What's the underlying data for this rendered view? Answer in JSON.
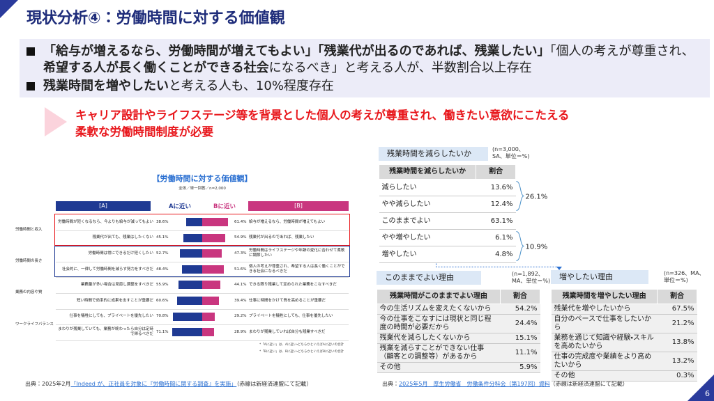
{
  "title": "現状分析④：労働時間に対する価値観",
  "bullets": [
    [
      {
        "text": "「給与が増えるなら、労働時間が増えてもよい」「残業代が出るのであれば、残業したい」",
        "bold": true
      },
      {
        "text": "「個人の考えが尊重され、",
        "bold": false
      },
      {
        "text": "希望する人が長く働くことができる社会",
        "bold": true
      },
      {
        "text": "になるべき」と考える人が、半数割合以上存在",
        "bold": false
      }
    ],
    [
      {
        "text": "残業時間を増やしたい",
        "bold": true
      },
      {
        "text": "と考える人も、10%程度存在",
        "bold": false
      }
    ]
  ],
  "callout": [
    "キャリア設計やライフステージ等を背景とした個人の考えが尊重され、働きたい意欲にこたえる",
    "柔軟な労働時間制度が必要"
  ],
  "chart_data": {
    "type": "diverging_bar",
    "title": "【労働時間に対する価値観】",
    "subtitle": "全体／単一回答／n=2,000",
    "headers": [
      "[A]",
      "[B]"
    ],
    "groups": [
      "労働時間と収入",
      "労働時間の長さ",
      "業務の内容や質",
      "ワークライフバランス"
    ],
    "statements_a": [
      "労働時間が短くなるなら、今よりも給与が減ってもよい",
      "残業代が出ても、残業はしたくない",
      "労働時間は常にできるだけ短くしたい",
      "社会的に、一律して労働時間を減らす努力をすべきだ",
      "業務量が多い場合は見直し調整をすべきだ",
      "短い時間で効率的に成果を出すことが重要だ",
      "仕事を犠牲にしても、プライベートを優先したい",
      "まわりが残業していても、業務が終わったら自分は定時で帰るべきだ"
    ],
    "statements_b": [
      "給与が増えるなら、労働時間が増えてもよい",
      "残業代が出るのであれば、残業したい",
      "労働時間はライフステージや年齢の変化に合わせて柔軟に調節したい",
      "個人の考えが尊重され、希望する人は長く働くことができる社会になるべきだ",
      "できる限り残業して定められた業務をこなすべきだ",
      "仕事に時間をかけて質を高めることが重要だ",
      "プライベートを犠牲にしても、仕事を優先したい",
      "まわりが残業していれば自分も残業すべきだ"
    ],
    "series": [
      {
        "name": "Aに近い",
        "color": "#1f3a93",
        "values": [
          38.6,
          45.1,
          52.7,
          48.4,
          55.9,
          60.6,
          70.8,
          71.1
        ],
        "value_labels": [
          "38.6%",
          "45.1%",
          "52.7%",
          "48.4%",
          "55.9%",
          "60.6%",
          "70.8%",
          "71.1%"
        ]
      },
      {
        "name": "Bに近い",
        "color": "#c9367f",
        "values": [
          61.4,
          54.9,
          47.3,
          51.6,
          44.1,
          39.4,
          29.2,
          28.9
        ],
        "value_labels": [
          "61.4%",
          "54.9%",
          "47.3%",
          "51.6%",
          "44.1%",
          "39.4%",
          "29.2%",
          "28.9%"
        ]
      }
    ],
    "notes": [
      "*「Aに近い」は、Aに近い・どちらかといえばAに近いの合計",
      "*「Bに近い」は、Bに近い・どちらかといえばBに近いの合計"
    ]
  },
  "tables": [
    {
      "title": "残業時間を減らしたいか",
      "note": "(n=3,000、SA、単位＝%)",
      "headers": [
        "残業時間を減らしたいか",
        "割合"
      ],
      "rows": [
        [
          "減らしたい",
          "13.6%"
        ],
        [
          "やや減らしたい",
          "12.4%"
        ],
        [
          "このままでよい",
          "63.1%"
        ],
        [
          "やや増やしたい",
          "6.1%"
        ],
        [
          "増やしたい",
          "4.8%"
        ]
      ],
      "subtotals": [
        "26.1%",
        "10.9%"
      ]
    },
    {
      "title": "このままでよい理由",
      "note": "(n=1,892、MA、単位＝%)",
      "headers": [
        "残業時間がこのままでよい理由",
        "割合"
      ],
      "rows": [
        [
          "今の生活リズムを変えたくないから",
          "54.2%"
        ],
        [
          "今の仕事をこなすには現状と同じ程度の時間が必要だから",
          "24.4%"
        ],
        [
          "残業代を減らしたくないから",
          "15.1%"
        ],
        [
          "残業を減らすことができない仕事（顧客との調整等）があるから",
          "11.1%"
        ],
        [
          "その他",
          "5.9%"
        ]
      ]
    },
    {
      "title": "増やしたい理由",
      "note": "(n=326、MA、単位＝%)",
      "headers": [
        "残業時間を増やしたい理由",
        "割合"
      ],
      "rows": [
        [
          "残業代を増やしたいから",
          "67.5%"
        ],
        [
          "自分のペースで仕事をしたいから",
          "21.2%"
        ],
        [
          "業務を通じて知識や経験・スキルを高めたいから",
          "13.8%"
        ],
        [
          "仕事の完成度や業績をより高めたいから",
          "13.2%"
        ],
        [
          "その他",
          "0.3%"
        ]
      ]
    }
  ],
  "sources": [
    [
      {
        "text": "出典：2025年2月",
        "link": false
      },
      {
        "text": "「Indeed が、正社員を対象に『労働時間に関する調査』を実施」",
        "link": true
      },
      {
        "text": "（赤線は新経済連盟にて記載）",
        "link": false
      }
    ],
    [
      {
        "text": "出典：",
        "link": false
      },
      {
        "text": "2025年5月　厚生労働省　労働条件分科会（第197回）資料",
        "link": true
      },
      {
        "text": "（赤線は新経済連盟にて記載）",
        "link": false
      }
    ]
  ],
  "page_number": "6"
}
